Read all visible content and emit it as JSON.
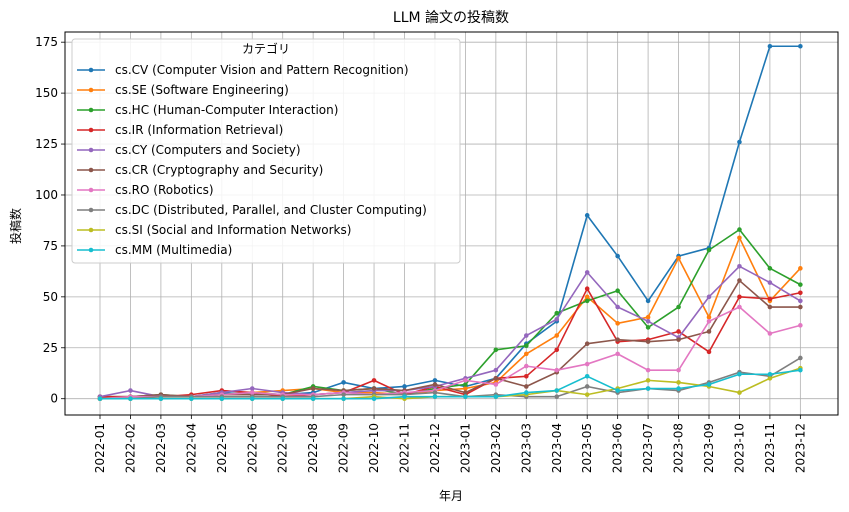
{
  "chart_data": {
    "type": "line",
    "title": "LLM 論文の投稿数",
    "xlabel": "年月",
    "ylabel": "投稿数",
    "ylim": [
      -8,
      180
    ],
    "yticks": [
      0,
      25,
      50,
      75,
      100,
      125,
      150,
      175
    ],
    "grid": true,
    "legend_title": "カテゴリ",
    "legend_position": "top-left",
    "categories": [
      "2022-01",
      "2022-02",
      "2022-03",
      "2022-04",
      "2022-05",
      "2022-06",
      "2022-07",
      "2022-08",
      "2022-09",
      "2022-10",
      "2022-11",
      "2022-12",
      "2023-01",
      "2023-02",
      "2023-03",
      "2023-04",
      "2023-05",
      "2023-06",
      "2023-07",
      "2023-08",
      "2023-09",
      "2023-10",
      "2023-11",
      "2023-12"
    ],
    "series": [
      {
        "name": "cs.CV (Computer Vision and Pattern Recognition)",
        "color": "#1f77b4",
        "values": [
          0,
          1,
          1,
          1,
          3,
          2,
          2,
          3,
          8,
          5,
          6,
          9,
          6,
          10,
          27,
          38,
          90,
          70,
          48,
          70,
          74,
          126,
          173,
          173
        ]
      },
      {
        "name": "cs.SE (Software Engineering)",
        "color": "#ff7f0e",
        "values": [
          0,
          1,
          1,
          1,
          2,
          3,
          4,
          5,
          3,
          3,
          2,
          4,
          5,
          8,
          22,
          31,
          50,
          37,
          40,
          69,
          40,
          79,
          48,
          64
        ]
      },
      {
        "name": "cs.HC (Human-Computer Interaction)",
        "color": "#2ca02c",
        "values": [
          1,
          1,
          2,
          1,
          2,
          3,
          2,
          6,
          4,
          5,
          2,
          5,
          7,
          24,
          26,
          42,
          48,
          53,
          35,
          45,
          73,
          83,
          64,
          56
        ]
      },
      {
        "name": "cs.IR (Information Retrieval)",
        "color": "#d62728",
        "values": [
          1,
          1,
          1,
          2,
          4,
          3,
          1,
          2,
          3,
          9,
          2,
          6,
          2,
          10,
          11,
          24,
          54,
          28,
          29,
          33,
          23,
          50,
          49,
          52
        ]
      },
      {
        "name": "cs.CY (Computers and Society)",
        "color": "#9467bd",
        "values": [
          1,
          4,
          1,
          1,
          3,
          5,
          3,
          2,
          3,
          4,
          4,
          6,
          10,
          14,
          31,
          39,
          62,
          45,
          38,
          30,
          50,
          65,
          57,
          48
        ]
      },
      {
        "name": "cs.CR (Cryptography and Security)",
        "color": "#8c564b",
        "values": [
          0,
          1,
          2,
          1,
          2,
          2,
          2,
          5,
          4,
          5,
          4,
          7,
          3,
          10,
          6,
          13,
          27,
          29,
          28,
          29,
          33,
          58,
          45,
          45
        ]
      },
      {
        "name": "cs.RO (Robotics)",
        "color": "#e377c2",
        "values": [
          0,
          1,
          1,
          1,
          2,
          3,
          2,
          2,
          3,
          2,
          3,
          4,
          9,
          7,
          16,
          14,
          17,
          22,
          14,
          14,
          38,
          45,
          32,
          36
        ]
      },
      {
        "name": "cs.DC (Distributed, Parallel, and Cluster Computing)",
        "color": "#7f7f7f",
        "values": [
          0,
          0,
          1,
          1,
          1,
          1,
          1,
          1,
          2,
          2,
          2,
          3,
          1,
          2,
          1,
          1,
          6,
          3,
          5,
          4,
          8,
          13,
          11,
          20
        ]
      },
      {
        "name": "cs.SI (Social and Information Networks)",
        "color": "#bcbd22",
        "values": [
          0,
          0,
          0,
          0,
          0,
          0,
          0,
          0,
          0,
          1,
          0,
          1,
          1,
          1,
          2,
          4,
          2,
          5,
          9,
          8,
          6,
          3,
          10,
          15
        ]
      },
      {
        "name": "cs.MM (Multimedia)",
        "color": "#17becf",
        "values": [
          0,
          0,
          0,
          0,
          0,
          0,
          0,
          0,
          0,
          0,
          1,
          1,
          1,
          1,
          3,
          4,
          11,
          4,
          5,
          5,
          7,
          12,
          12,
          14
        ]
      }
    ]
  }
}
